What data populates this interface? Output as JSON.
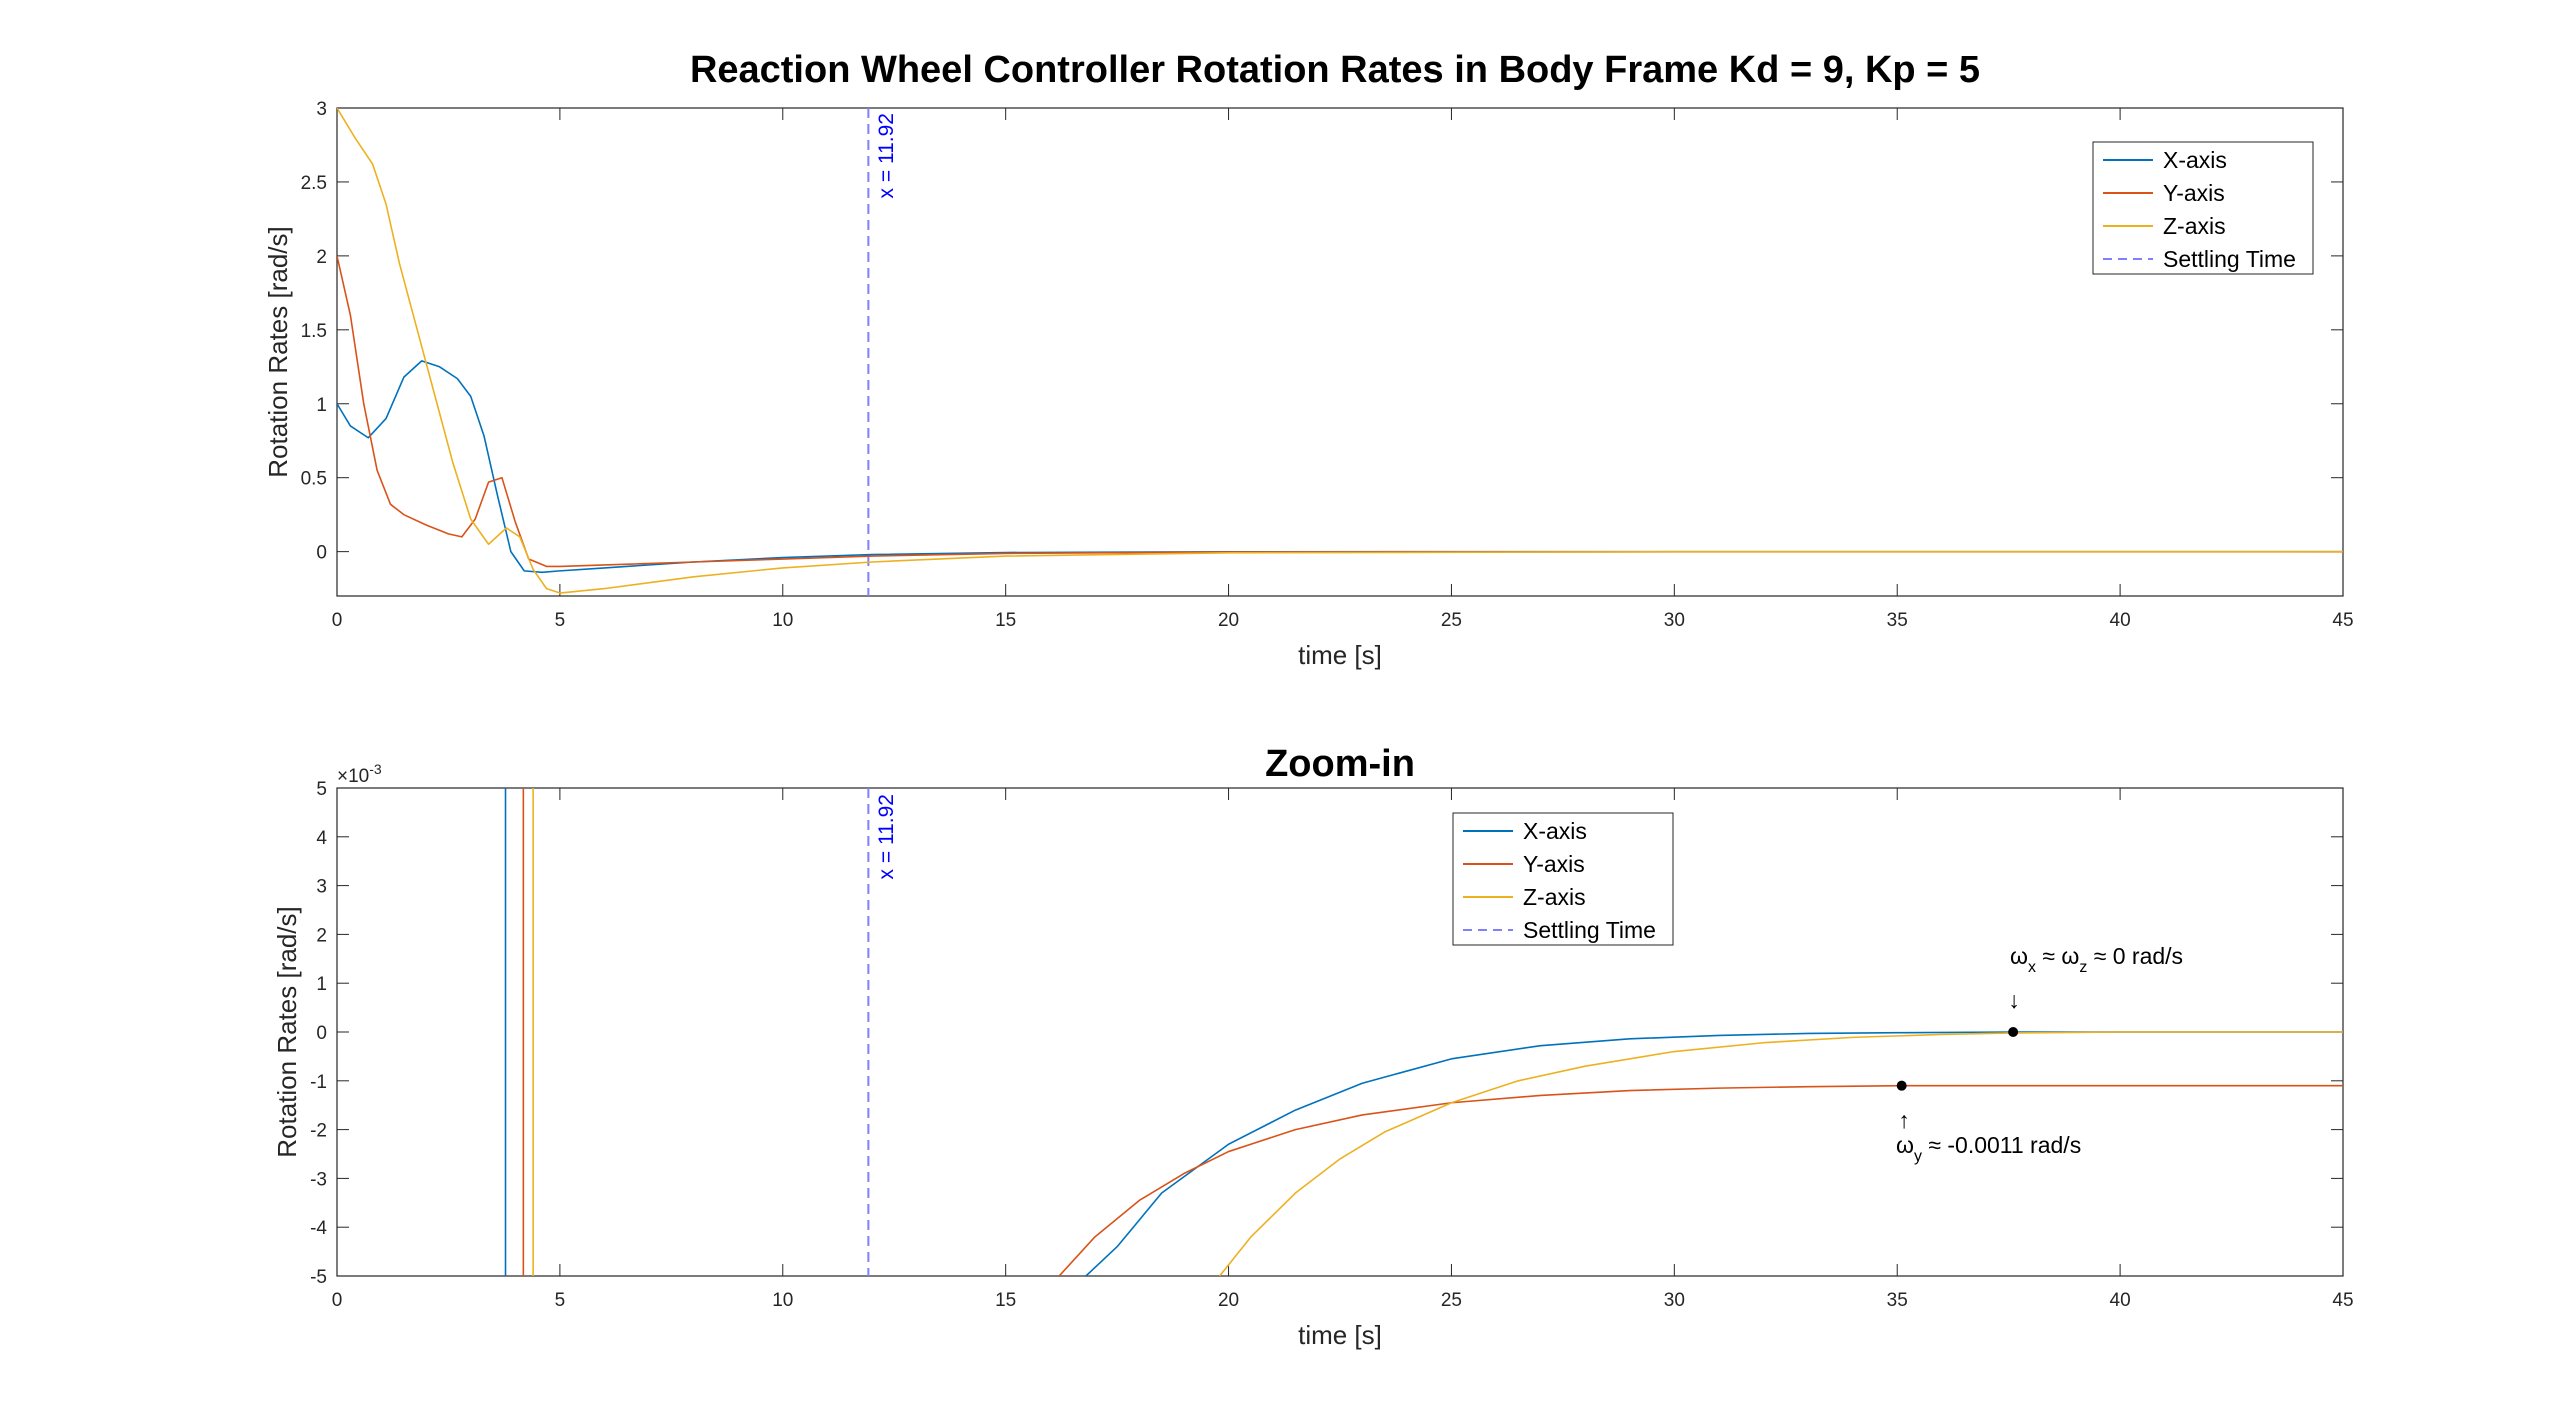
{
  "chart_data": [
    {
      "type": "line",
      "title": "Reaction Wheel Controller Rotation Rates in Body Frame Kd = 9, Kp = 5",
      "xlabel": "time [s]",
      "ylabel": "Rotation Rates  [rad/s]",
      "xlim": [
        0,
        45
      ],
      "ylim": [
        -0.3,
        3
      ],
      "xticks": [
        0,
        5,
        10,
        15,
        20,
        25,
        30,
        35,
        40,
        45
      ],
      "yticks": [
        0,
        0.5,
        1,
        1.5,
        2,
        2.5,
        3
      ],
      "grid": false,
      "legend_position": "top-right",
      "series": [
        {
          "name": "X-axis",
          "color": "#0072BD",
          "x": [
            0,
            0.3,
            0.7,
            1.1,
            1.5,
            1.9,
            2.3,
            2.7,
            3.0,
            3.3,
            3.6,
            3.9,
            4.2,
            4.6,
            5.0,
            6,
            8,
            10,
            12,
            15,
            20,
            30,
            45
          ],
          "y": [
            1.0,
            0.85,
            0.77,
            0.9,
            1.18,
            1.29,
            1.25,
            1.17,
            1.05,
            0.78,
            0.38,
            0.0,
            -0.13,
            -0.14,
            -0.13,
            -0.11,
            -0.07,
            -0.04,
            -0.02,
            -0.006,
            -0.001,
            0.0,
            0.0
          ]
        },
        {
          "name": "Y-axis",
          "color": "#D95319",
          "x": [
            0,
            0.3,
            0.6,
            0.9,
            1.2,
            1.5,
            2.0,
            2.5,
            2.8,
            3.1,
            3.4,
            3.7,
            4.0,
            4.3,
            4.7,
            5.0,
            6,
            8,
            10,
            12,
            15,
            20,
            30,
            45
          ],
          "y": [
            2.0,
            1.6,
            1.0,
            0.55,
            0.32,
            0.25,
            0.18,
            0.12,
            0.1,
            0.22,
            0.47,
            0.5,
            0.2,
            -0.05,
            -0.1,
            -0.1,
            -0.09,
            -0.07,
            -0.05,
            -0.03,
            -0.012,
            -0.003,
            -0.0013,
            -0.0011
          ]
        },
        {
          "name": "Z-axis",
          "color": "#EDB120",
          "x": [
            0,
            0.4,
            0.8,
            1.1,
            1.4,
            1.8,
            2.2,
            2.6,
            3.0,
            3.4,
            3.8,
            4.1,
            4.4,
            4.7,
            5.0,
            6,
            8,
            10,
            12,
            15,
            20,
            30,
            45
          ],
          "y": [
            3.0,
            2.8,
            2.62,
            2.35,
            1.95,
            1.5,
            1.05,
            0.6,
            0.22,
            0.05,
            0.16,
            0.1,
            -0.12,
            -0.25,
            -0.28,
            -0.25,
            -0.17,
            -0.11,
            -0.07,
            -0.03,
            -0.008,
            -0.0005,
            0.0
          ]
        }
      ],
      "vline": {
        "x": 11.92,
        "label": "x = 11.92",
        "name": "Settling Time",
        "color": "#0000ff"
      }
    },
    {
      "type": "line",
      "title": "Zoom-in",
      "xlabel": "time [s]",
      "ylabel": "Rotation Rates  [rad/s]",
      "y_exponent_label": "×10",
      "y_exponent": "-3",
      "xlim": [
        0,
        45
      ],
      "ylim": [
        -5,
        5
      ],
      "y_scale": 0.001,
      "xticks": [
        0,
        5,
        10,
        15,
        20,
        25,
        30,
        35,
        40,
        45
      ],
      "yticks": [
        5,
        4,
        3,
        2,
        1,
        0,
        -1,
        -2,
        -3,
        -4,
        -5
      ],
      "grid": false,
      "legend_position": "top-center",
      "series": [
        {
          "name": "X-axis",
          "color": "#0072BD",
          "x": [
            3.78,
            3.78,
            3.78
          ],
          "y": [
            6,
            0,
            -6
          ],
          "x2": [
            16.8,
            17.5,
            18.5,
            20,
            21.5,
            23,
            25,
            27,
            29,
            31,
            33,
            35,
            37.6,
            40,
            45
          ],
          "y2": [
            -5,
            -4.4,
            -3.3,
            -2.3,
            -1.6,
            -1.05,
            -0.55,
            -0.28,
            -0.14,
            -0.07,
            -0.03,
            -0.015,
            0.0,
            0.0,
            0.0
          ]
        },
        {
          "name": "Y-axis",
          "color": "#D95319",
          "x": [
            4.18,
            4.18,
            4.18
          ],
          "y": [
            6,
            0,
            -6
          ],
          "x2": [
            16.2,
            17,
            18,
            19,
            20,
            21.5,
            23,
            25,
            27,
            29,
            31,
            33,
            35.1,
            40,
            45
          ],
          "y2": [
            -5,
            -4.2,
            -3.45,
            -2.9,
            -2.45,
            -2.0,
            -1.7,
            -1.45,
            -1.3,
            -1.2,
            -1.15,
            -1.12,
            -1.1,
            -1.1,
            -1.1
          ]
        },
        {
          "name": "Z-axis",
          "color": "#EDB120",
          "x": [
            4.4,
            4.4,
            4.4
          ],
          "y": [
            6,
            0,
            -6
          ],
          "x2": [
            19.8,
            20.5,
            21.5,
            22.5,
            23.5,
            25,
            26.5,
            28,
            30,
            32,
            34,
            36,
            37.6,
            40,
            45
          ],
          "y2": [
            -5,
            -4.2,
            -3.3,
            -2.6,
            -2.05,
            -1.45,
            -1.0,
            -0.7,
            -0.4,
            -0.22,
            -0.11,
            -0.05,
            -0.02,
            0.0,
            0.0
          ]
        }
      ],
      "vline": {
        "x": 11.92,
        "label": "x = 11.92",
        "name": "Settling Time",
        "color": "#0000ff"
      },
      "markers": [
        {
          "x": 37.6,
          "y": 0.0
        },
        {
          "x": 35.1,
          "y": -1.1
        }
      ],
      "annotations": {
        "wxz": {
          "omega": "ω",
          "sub1": "x",
          "approx1": " ≈ ",
          "sub2": "z",
          "approx2": " ≈ 0 rad/s",
          "arrow": "↓"
        },
        "wy": {
          "omega": "ω",
          "sub": "y",
          "text": " ≈ -0.0011 rad/s",
          "arrow": "↑"
        }
      }
    }
  ]
}
